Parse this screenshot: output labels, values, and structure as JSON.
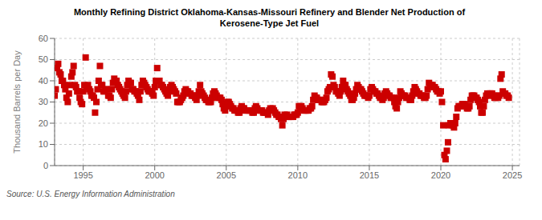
{
  "chart_data": {
    "type": "scatter",
    "title": "Monthly Refining District Oklahoma-Kansas-Missouri Refinery and Blender Net Production of\nKerosene-Type Jet Fuel",
    "ylabel": "Thousand Barrels per Day",
    "annotations": [
      "Source: U.S. Energy Information Administration"
    ],
    "color": "#cc0000",
    "marker": "square",
    "grid": true,
    "xlim": [
      1993.0,
      2025.5
    ],
    "xticks": [
      1995,
      2000,
      2005,
      2010,
      2015,
      2020,
      2025
    ],
    "ylim": [
      0,
      60
    ],
    "yticks": [
      0,
      10,
      20,
      30,
      40,
      50,
      60
    ],
    "x": [
      1993.0,
      1993.08,
      1993.17,
      1993.25,
      1993.33,
      1993.42,
      1993.5,
      1993.58,
      1993.67,
      1993.75,
      1993.83,
      1993.92,
      1994.0,
      1994.08,
      1994.17,
      1994.25,
      1994.33,
      1994.42,
      1994.5,
      1994.58,
      1994.67,
      1994.75,
      1994.83,
      1994.92,
      1995.0,
      1995.08,
      1995.17,
      1995.25,
      1995.33,
      1995.42,
      1995.5,
      1995.58,
      1995.67,
      1995.75,
      1995.83,
      1995.92,
      1996.0,
      1996.08,
      1996.17,
      1996.25,
      1996.33,
      1996.42,
      1996.5,
      1996.58,
      1996.67,
      1996.75,
      1996.83,
      1996.92,
      1997.0,
      1997.08,
      1997.17,
      1997.25,
      1997.33,
      1997.42,
      1997.5,
      1997.58,
      1997.67,
      1997.75,
      1997.83,
      1997.92,
      1998.0,
      1998.08,
      1998.17,
      1998.25,
      1998.33,
      1998.42,
      1998.5,
      1998.58,
      1998.67,
      1998.75,
      1998.83,
      1998.92,
      1999.0,
      1999.08,
      1999.17,
      1999.25,
      1999.33,
      1999.42,
      1999.5,
      1999.58,
      1999.67,
      1999.75,
      1999.83,
      1999.92,
      2000.0,
      2000.08,
      2000.17,
      2000.25,
      2000.33,
      2000.42,
      2000.5,
      2000.58,
      2000.67,
      2000.75,
      2000.83,
      2000.92,
      2001.0,
      2001.08,
      2001.17,
      2001.25,
      2001.33,
      2001.42,
      2001.5,
      2001.58,
      2001.67,
      2001.75,
      2001.83,
      2001.92,
      2002.0,
      2002.08,
      2002.17,
      2002.25,
      2002.33,
      2002.42,
      2002.5,
      2002.58,
      2002.67,
      2002.75,
      2002.83,
      2002.92,
      2003.0,
      2003.08,
      2003.17,
      2003.25,
      2003.33,
      2003.42,
      2003.5,
      2003.58,
      2003.67,
      2003.75,
      2003.83,
      2003.92,
      2004.0,
      2004.08,
      2004.17,
      2004.25,
      2004.33,
      2004.42,
      2004.5,
      2004.58,
      2004.67,
      2004.75,
      2004.83,
      2004.92,
      2005.0,
      2005.08,
      2005.17,
      2005.25,
      2005.33,
      2005.42,
      2005.5,
      2005.58,
      2005.67,
      2005.75,
      2005.83,
      2005.92,
      2006.0,
      2006.08,
      2006.17,
      2006.25,
      2006.33,
      2006.42,
      2006.5,
      2006.58,
      2006.67,
      2006.75,
      2006.83,
      2006.92,
      2007.0,
      2007.08,
      2007.17,
      2007.25,
      2007.33,
      2007.42,
      2007.5,
      2007.58,
      2007.67,
      2007.75,
      2007.83,
      2007.92,
      2008.0,
      2008.08,
      2008.17,
      2008.25,
      2008.33,
      2008.42,
      2008.5,
      2008.58,
      2008.67,
      2008.75,
      2008.83,
      2008.92,
      2009.0,
      2009.08,
      2009.17,
      2009.25,
      2009.33,
      2009.42,
      2009.5,
      2009.58,
      2009.67,
      2009.75,
      2009.83,
      2009.92,
      2010.0,
      2010.08,
      2010.17,
      2010.25,
      2010.33,
      2010.42,
      2010.5,
      2010.58,
      2010.67,
      2010.75,
      2010.83,
      2010.92,
      2011.0,
      2011.08,
      2011.17,
      2011.25,
      2011.33,
      2011.42,
      2011.5,
      2011.58,
      2011.67,
      2011.75,
      2011.83,
      2011.92,
      2012.0,
      2012.08,
      2012.17,
      2012.25,
      2012.33,
      2012.42,
      2012.5,
      2012.58,
      2012.67,
      2012.75,
      2012.83,
      2012.92,
      2013.0,
      2013.08,
      2013.17,
      2013.25,
      2013.33,
      2013.42,
      2013.5,
      2013.58,
      2013.67,
      2013.75,
      2013.83,
      2013.92,
      2014.0,
      2014.08,
      2014.17,
      2014.25,
      2014.33,
      2014.42,
      2014.5,
      2014.58,
      2014.67,
      2014.75,
      2014.83,
      2014.92,
      2015.0,
      2015.08,
      2015.17,
      2015.25,
      2015.33,
      2015.42,
      2015.5,
      2015.58,
      2015.67,
      2015.75,
      2015.83,
      2015.92,
      2016.0,
      2016.08,
      2016.17,
      2016.25,
      2016.33,
      2016.42,
      2016.5,
      2016.58,
      2016.67,
      2016.75,
      2016.83,
      2016.92,
      2017.0,
      2017.08,
      2017.17,
      2017.25,
      2017.33,
      2017.42,
      2017.5,
      2017.58,
      2017.67,
      2017.75,
      2017.83,
      2017.92,
      2018.0,
      2018.08,
      2018.17,
      2018.25,
      2018.33,
      2018.42,
      2018.5,
      2018.58,
      2018.67,
      2018.75,
      2018.83,
      2018.92,
      2019.0,
      2019.08,
      2019.17,
      2019.25,
      2019.33,
      2019.42,
      2019.5,
      2019.58,
      2019.67,
      2019.75,
      2019.83,
      2019.92,
      2020.0,
      2020.08,
      2020.17,
      2020.25,
      2020.33,
      2020.42,
      2020.5,
      2020.58,
      2020.67,
      2020.75,
      2020.83,
      2020.92,
      2021.0,
      2021.08,
      2021.17,
      2021.25,
      2021.33,
      2021.42,
      2021.5,
      2021.58,
      2021.67,
      2021.75,
      2021.83,
      2021.92,
      2022.0,
      2022.08,
      2022.17,
      2022.25,
      2022.33,
      2022.42,
      2022.5,
      2022.58,
      2022.67,
      2022.75,
      2022.83,
      2022.92,
      2023.0,
      2023.08,
      2023.17,
      2023.25,
      2023.33,
      2023.42,
      2023.5,
      2023.58,
      2023.67,
      2023.75,
      2023.83,
      2023.92,
      2024.0,
      2024.08,
      2024.17,
      2024.25,
      2024.33,
      2024.42,
      2024.5,
      2024.58,
      2024.67,
      2024.75
    ],
    "values": [
      33,
      36,
      46,
      48,
      44,
      43,
      40,
      40,
      38,
      36,
      32,
      30,
      34,
      38,
      42,
      44,
      47,
      38,
      37,
      35,
      35,
      32,
      30,
      29,
      35,
      38,
      51,
      37,
      38,
      36,
      35,
      33,
      33,
      32,
      25,
      30,
      36,
      40,
      47,
      38,
      38,
      35,
      35,
      36,
      36,
      33,
      33,
      32,
      36,
      39,
      41,
      40,
      40,
      38,
      37,
      36,
      35,
      34,
      33,
      32,
      35,
      38,
      40,
      39,
      39,
      36,
      36,
      35,
      35,
      34,
      33,
      31,
      35,
      38,
      40,
      39,
      38,
      37,
      36,
      35,
      35,
      35,
      34,
      33,
      37,
      40,
      46,
      40,
      40,
      38,
      38,
      37,
      36,
      35,
      34,
      33,
      35,
      37,
      38,
      37,
      36,
      35,
      34,
      30,
      30,
      30,
      31,
      32,
      33,
      35,
      36,
      35,
      35,
      34,
      34,
      33,
      33,
      33,
      32,
      31,
      33,
      35,
      38,
      35,
      34,
      33,
      32,
      31,
      31,
      30,
      30,
      30,
      32,
      34,
      35,
      34,
      33,
      32,
      32,
      32,
      31,
      29,
      27,
      26,
      28,
      30,
      30,
      29,
      28,
      27,
      27,
      26,
      26,
      26,
      25,
      25,
      27,
      28,
      27,
      27,
      26,
      26,
      26,
      26,
      26,
      26,
      25,
      25,
      27,
      28,
      27,
      26,
      26,
      26,
      26,
      25,
      25,
      25,
      25,
      24,
      26,
      27,
      26,
      27,
      26,
      25,
      24,
      24,
      23,
      23,
      22,
      19,
      22,
      24,
      23,
      24,
      23,
      23,
      23,
      23,
      23,
      24,
      24,
      24,
      25,
      28,
      28,
      28,
      27,
      26,
      26,
      26,
      26,
      26,
      27,
      27,
      28,
      31,
      33,
      32,
      32,
      31,
      31,
      31,
      30,
      30,
      30,
      31,
      32,
      35,
      36,
      37,
      43,
      42,
      38,
      37,
      35,
      35,
      34,
      33,
      35,
      37,
      40,
      38,
      38,
      36,
      35,
      34,
      33,
      31,
      31,
      32,
      34,
      36,
      38,
      37,
      36,
      36,
      35,
      34,
      33,
      33,
      33,
      32,
      33,
      36,
      37,
      36,
      35,
      35,
      34,
      34,
      33,
      32,
      32,
      31,
      32,
      34,
      35,
      34,
      33,
      33,
      32,
      32,
      32,
      30,
      28,
      27,
      30,
      32,
      35,
      34,
      33,
      33,
      33,
      32,
      32,
      32,
      31,
      31,
      33,
      35,
      37,
      36,
      35,
      34,
      34,
      33,
      33,
      33,
      32,
      32,
      33,
      36,
      39,
      38,
      38,
      38,
      37,
      37,
      36,
      35,
      35,
      34,
      35,
      30,
      19,
      5,
      3,
      7,
      11,
      19,
      20,
      20,
      19,
      18,
      20,
      23,
      27,
      28,
      28,
      28,
      29,
      29,
      29,
      28,
      27,
      27,
      28,
      31,
      33,
      33,
      33,
      32,
      32,
      31,
      30,
      28,
      25,
      25,
      28,
      31,
      33,
      34,
      33,
      34,
      34,
      34,
      33,
      32,
      32,
      33,
      32,
      33,
      41,
      43,
      35,
      34,
      34,
      33,
      33,
      32
    ]
  }
}
